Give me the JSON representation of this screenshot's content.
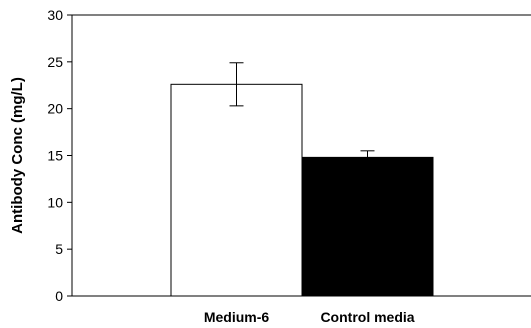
{
  "chart_data": {
    "type": "bar",
    "categories": [
      "Medium-6",
      "Control media"
    ],
    "values": [
      22.6,
      14.8
    ],
    "error_bars": [
      2.3,
      0.7
    ],
    "bar_colors": [
      "#ffffff",
      "#000000"
    ],
    "bar_edge_color": "#000000",
    "ylabel": "Antibody Conc (mg/L)",
    "xlabel": "",
    "title": "",
    "ylim": [
      0,
      30
    ],
    "yticks": [
      0,
      5,
      10,
      15,
      20,
      25,
      30
    ],
    "grid": false,
    "legend": "none"
  }
}
